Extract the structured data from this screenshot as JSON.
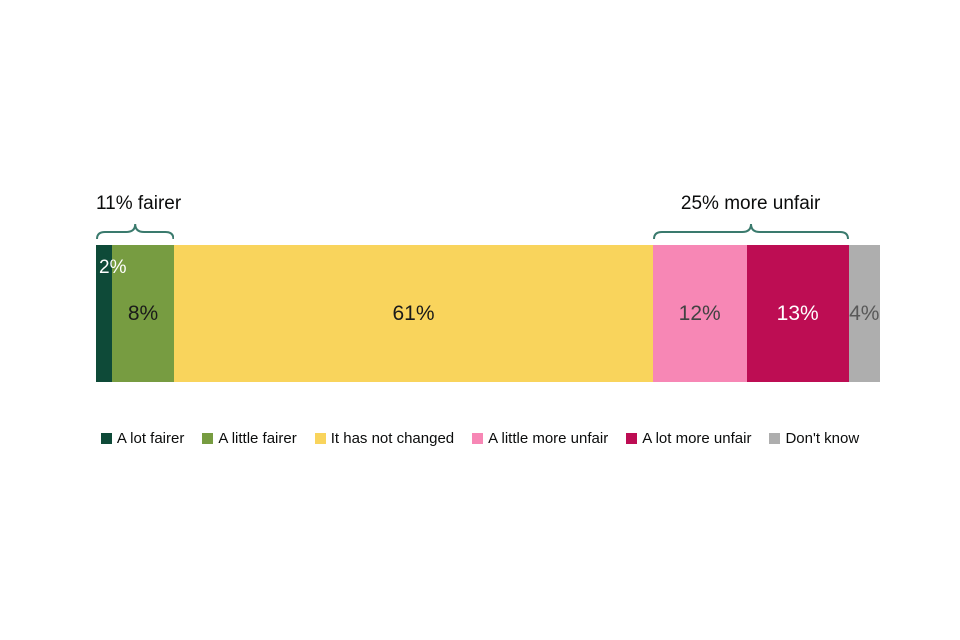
{
  "chart_data": {
    "type": "bar",
    "variant": "stacked-horizontal-100-percent",
    "title": "",
    "xlabel": "",
    "ylabel": "",
    "xlim": [
      0,
      100
    ],
    "grid": false,
    "legend_position": "bottom",
    "brace_color": "#3a7a6d",
    "categories": [
      "A lot fairer",
      "A little fairer",
      "It has not changed",
      "A little more unfair",
      "A lot more unfair",
      "Don't know"
    ],
    "values": [
      2,
      8,
      61,
      12,
      13,
      4
    ],
    "segments": [
      {
        "id": "a-lot-fairer",
        "category": "A lot fairer",
        "value": 2,
        "label": "2%",
        "color": "#0e4a38",
        "label_color": "#ffffff",
        "label_style": "top-left"
      },
      {
        "id": "a-little-fairer",
        "category": "A little fairer",
        "value": 8,
        "label": "8%",
        "color": "#779c41",
        "label_color": "#1a1a1a",
        "label_style": ""
      },
      {
        "id": "it-has-not-changed",
        "category": "It has not changed",
        "value": 61,
        "label": "61%",
        "color": "#f9d45c",
        "label_color": "#1a1a1a",
        "label_style": ""
      },
      {
        "id": "a-little-more-unfair",
        "category": "A little more unfair",
        "value": 12,
        "label": "12%",
        "color": "#f787b5",
        "label_color": "#424242",
        "label_style": ""
      },
      {
        "id": "a-lot-more-unfair",
        "category": "A lot more unfair",
        "value": 13,
        "label": "13%",
        "color": "#bd0d53",
        "label_color": "#ffffff",
        "label_style": ""
      },
      {
        "id": "dont-know",
        "category": "Don't know",
        "value": 4,
        "label": "4%",
        "color": "#aeaeae",
        "label_color": "#595959",
        "label_style": ""
      }
    ],
    "annotations": [
      {
        "id": "fairer",
        "text": "11% fairer",
        "total": 11,
        "from": 0,
        "to": 1
      },
      {
        "id": "more-unfair",
        "text": "25% more unfair",
        "total": 25,
        "from": 3,
        "to": 4
      }
    ]
  },
  "legend": {
    "items": [
      {
        "id": "a-lot-fairer",
        "label": "A lot fairer",
        "color": "#0e4a38"
      },
      {
        "id": "a-little-fairer",
        "label": "A little fairer",
        "color": "#779c41"
      },
      {
        "id": "it-has-not-changed",
        "label": "It has not changed",
        "color": "#f9d45c"
      },
      {
        "id": "a-little-more-unfair",
        "label": "A little more unfair",
        "color": "#f787b5"
      },
      {
        "id": "a-lot-more-unfair",
        "label": "A lot more unfair",
        "color": "#bd0d53"
      },
      {
        "id": "dont-know",
        "label": "Don't know",
        "color": "#aeaeae"
      }
    ]
  }
}
